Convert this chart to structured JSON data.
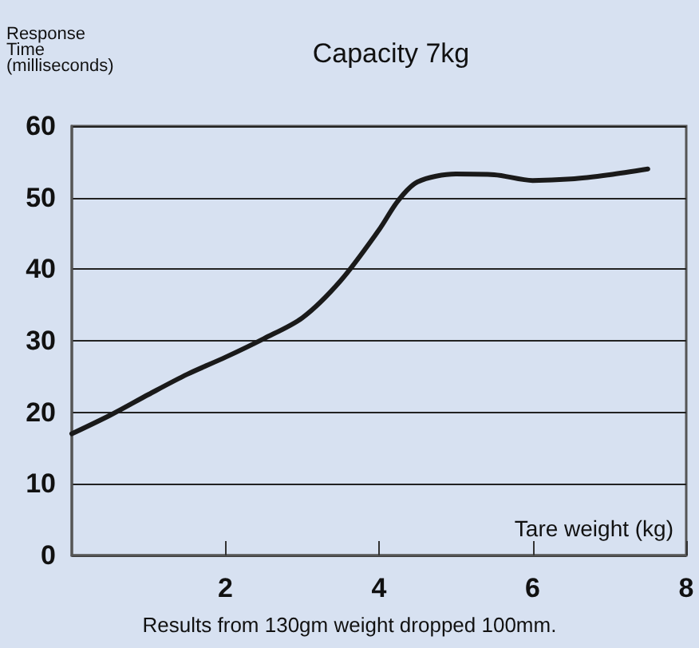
{
  "chart_data": {
    "type": "line",
    "title": "Capacity 7kg",
    "xlabel": "Tare weight (kg)",
    "ylabel": "Response Time (milliseconds)",
    "annotations": [
      "Results from 130gm weight dropped 100mm."
    ],
    "x": [
      0,
      0.5,
      1,
      1.5,
      2,
      2.5,
      3,
      3.5,
      4,
      4.25,
      4.5,
      5,
      5.5,
      6,
      6.5,
      7,
      7.5
    ],
    "series": [
      {
        "color": "#1a1a1a",
        "values": [
          17,
          19.6,
          22.5,
          25.3,
          27.7,
          30.3,
          33.2,
          38.4,
          45.5,
          49.6,
          52.2,
          53.3,
          53.2,
          52.4,
          52.6,
          53.2,
          54
        ]
      }
    ],
    "xlim": [
      0,
      8
    ],
    "xticks": [
      2,
      4,
      6,
      8
    ],
    "ylim": [
      0,
      60
    ],
    "yticks": [
      0,
      10,
      20,
      30,
      40,
      50,
      60
    ],
    "grid": "y",
    "marker": "none",
    "line_style": "solid"
  }
}
